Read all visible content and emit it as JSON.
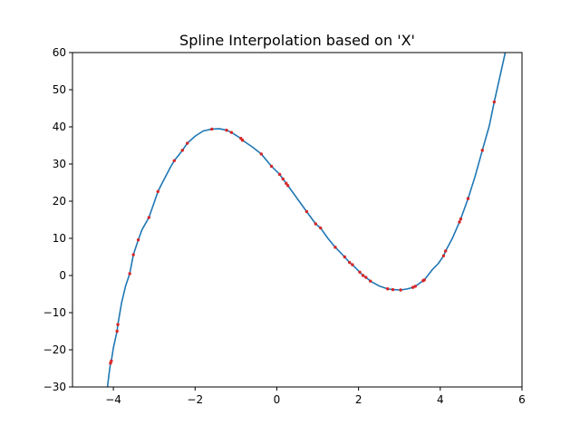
{
  "chart_data": {
    "type": "line",
    "title": "Spline Interpolation based on 'X'",
    "xlabel": "",
    "ylabel": "",
    "xlim": [
      -5,
      6
    ],
    "ylim": [
      -30,
      60
    ],
    "xticks": [
      -4,
      -2,
      0,
      2,
      4,
      6
    ],
    "yticks": [
      -30,
      -20,
      -10,
      0,
      10,
      20,
      30,
      40,
      50,
      60
    ],
    "grid": false,
    "legend": "none",
    "colors": {
      "line": "#1f77b4",
      "points": "#d62728"
    },
    "series": [
      {
        "kind": "scatter",
        "points": [
          [
            -4.07,
            -23.6
          ],
          [
            -4.05,
            -23.0
          ],
          [
            -3.91,
            -15.0
          ],
          [
            -3.89,
            -13.2
          ],
          [
            -3.6,
            0.5
          ],
          [
            -3.51,
            5.6
          ],
          [
            -3.39,
            9.6
          ],
          [
            -3.13,
            15.6
          ],
          [
            -2.91,
            22.6
          ],
          [
            -2.51,
            30.9
          ],
          [
            -2.31,
            33.7
          ],
          [
            -2.19,
            35.6
          ],
          [
            -1.59,
            39.4
          ],
          [
            -1.23,
            39.1
          ],
          [
            -1.11,
            38.5
          ],
          [
            -0.88,
            36.9
          ],
          [
            -0.84,
            36.4
          ],
          [
            -0.38,
            32.7
          ],
          [
            -0.13,
            29.4
          ],
          [
            0.07,
            27.2
          ],
          [
            0.15,
            26.0
          ],
          [
            0.23,
            24.8
          ],
          [
            0.27,
            24.2
          ],
          [
            0.73,
            17.2
          ],
          [
            0.95,
            13.9
          ],
          [
            1.07,
            12.8
          ],
          [
            1.43,
            7.6
          ],
          [
            1.66,
            5.0
          ],
          [
            1.78,
            3.5
          ],
          [
            1.85,
            2.9
          ],
          [
            2.03,
            0.9
          ],
          [
            2.11,
            0.0
          ],
          [
            2.18,
            -0.5
          ],
          [
            2.29,
            -1.5
          ],
          [
            2.71,
            -3.6
          ],
          [
            2.84,
            -3.8
          ],
          [
            3.03,
            -3.9
          ],
          [
            3.33,
            -3.2
          ],
          [
            3.39,
            -2.9
          ],
          [
            3.58,
            -1.4
          ],
          [
            3.61,
            -1.2
          ],
          [
            4.08,
            5.3
          ],
          [
            4.13,
            6.6
          ],
          [
            4.47,
            14.4
          ],
          [
            4.5,
            15.2
          ],
          [
            4.68,
            20.7
          ],
          [
            5.03,
            33.7
          ],
          [
            5.32,
            46.7
          ]
        ]
      },
      {
        "kind": "line",
        "name": "",
        "x": [
          -4.15,
          -4.1,
          -4.07,
          -4.05,
          -4.0,
          -3.91,
          -3.89,
          -3.8,
          -3.7,
          -3.6,
          -3.51,
          -3.39,
          -3.3,
          -3.13,
          -3.0,
          -2.91,
          -2.8,
          -2.6,
          -2.51,
          -2.4,
          -2.31,
          -2.19,
          -2.0,
          -1.8,
          -1.59,
          -1.4,
          -1.23,
          -1.11,
          -0.88,
          -0.84,
          -0.6,
          -0.38,
          -0.13,
          0.07,
          0.15,
          0.23,
          0.27,
          0.5,
          0.73,
          0.95,
          1.07,
          1.25,
          1.43,
          1.66,
          1.78,
          1.85,
          2.03,
          2.11,
          2.18,
          2.29,
          2.5,
          2.71,
          2.84,
          3.03,
          3.2,
          3.33,
          3.39,
          3.58,
          3.61,
          3.8,
          3.95,
          4.08,
          4.13,
          4.3,
          4.47,
          4.5,
          4.68,
          4.85,
          5.03,
          5.2,
          5.32,
          5.5,
          5.6
        ],
        "y": [
          -30.5,
          -26.0,
          -23.6,
          -23.0,
          -19.5,
          -15.0,
          -13.2,
          -7.4,
          -2.8,
          0.5,
          5.6,
          9.6,
          12.3,
          15.6,
          19.7,
          22.6,
          25.0,
          29.2,
          30.9,
          32.4,
          33.7,
          35.6,
          37.5,
          38.9,
          39.4,
          39.5,
          39.1,
          38.5,
          36.9,
          36.4,
          34.6,
          32.7,
          29.4,
          27.2,
          26.0,
          24.8,
          24.2,
          20.7,
          17.2,
          13.9,
          12.8,
          10.0,
          7.6,
          5.0,
          3.5,
          2.9,
          0.9,
          0.0,
          -0.5,
          -1.5,
          -2.8,
          -3.6,
          -3.8,
          -3.9,
          -3.6,
          -3.2,
          -2.9,
          -1.4,
          -1.2,
          1.5,
          3.2,
          5.3,
          6.6,
          10.1,
          14.4,
          15.2,
          20.7,
          26.6,
          33.7,
          40.3,
          46.7,
          55.5,
          60.5
        ]
      }
    ]
  }
}
